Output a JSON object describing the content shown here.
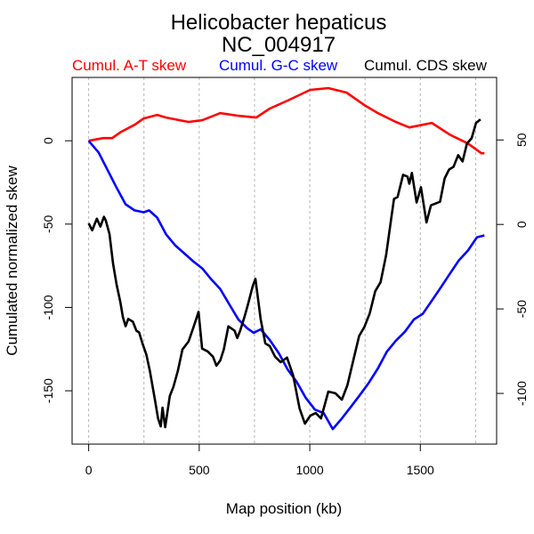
{
  "chart_data": {
    "type": "line",
    "title": "Helicobacter hepaticus",
    "subtitle": "NC_004917",
    "xlabel": "Map position (kb)",
    "ylabel": "Cumulated normalized skew",
    "xlim": [
      -75,
      1845
    ],
    "ylim_left": [
      -182,
      38
    ],
    "ylim_right": [
      -130,
      87
    ],
    "x_ticks": [
      0,
      500,
      1000,
      1500
    ],
    "x_tick_labels": [
      "0",
      "500",
      "1000",
      "1500"
    ],
    "y_left_ticks": [
      0,
      -50,
      -100,
      -150
    ],
    "y_left_tick_labels": [
      "0",
      "-50",
      "-100",
      "-150"
    ],
    "y_right_ticks": [
      50,
      0,
      -50,
      -100
    ],
    "y_right_tick_labels": [
      "50",
      "0",
      "-50",
      "-100"
    ],
    "grid_x": [
      0,
      250,
      500,
      750,
      1000,
      1250,
      1500,
      1750
    ],
    "legend_placement": "top",
    "series": [
      {
        "name": "Cumul. A-T skew",
        "color": "#ff0000",
        "axis": "left",
        "x": [
          0,
          65,
          106,
          147,
          208,
          249,
          310,
          351,
          412,
          452,
          514,
          595,
          677,
          758,
          819,
          900,
          1002,
          1084,
          1166,
          1247,
          1308,
          1389,
          1450,
          1511,
          1552,
          1633,
          1715,
          1776,
          1790
        ],
        "y": [
          0,
          1.6,
          1.6,
          5.4,
          9.6,
          13.4,
          15.5,
          13.9,
          12.3,
          11.3,
          12.3,
          16.6,
          15.0,
          13.9,
          19.3,
          24.1,
          30.5,
          31.6,
          28.9,
          21.4,
          16.6,
          11.3,
          8.0,
          9.6,
          10.7,
          3.7,
          -1.6,
          -7.5,
          -7.5
        ]
      },
      {
        "name": "Cumul. G-C skew",
        "color": "#0000ff",
        "axis": "left",
        "x": [
          0,
          45,
          86,
          127,
          167,
          208,
          249,
          273,
          310,
          351,
          391,
          432,
          473,
          514,
          554,
          595,
          636,
          677,
          717,
          746,
          778,
          819,
          860,
          900,
          941,
          982,
          1023,
          1063,
          1104,
          1145,
          1186,
          1226,
          1267,
          1308,
          1349,
          1389,
          1430,
          1471,
          1511,
          1552,
          1593,
          1633,
          1674,
          1715,
          1756,
          1790
        ],
        "y": [
          0,
          -7.0,
          -17.7,
          -28.4,
          -38.1,
          -41.8,
          -42.9,
          -41.8,
          -46.1,
          -56.3,
          -62.7,
          -67.5,
          -72.3,
          -76.6,
          -83.1,
          -89.0,
          -98.1,
          -107.2,
          -112.5,
          -115.2,
          -113.1,
          -119.5,
          -127.5,
          -137.2,
          -144.7,
          -154.3,
          -161.3,
          -163.4,
          -173.0,
          -166.6,
          -159.6,
          -152.7,
          -145.2,
          -136.6,
          -126.4,
          -120.0,
          -114.6,
          -107.2,
          -103.9,
          -95.9,
          -87.9,
          -79.9,
          -71.8,
          -65.9,
          -57.9,
          -56.8
        ]
      },
      {
        "name": "Cumul. CDS skew",
        "color": "#000000",
        "axis": "right",
        "x": [
          0,
          16,
          37,
          53,
          69,
          77,
          94,
          110,
          126,
          143,
          155,
          167,
          179,
          200,
          216,
          228,
          244,
          261,
          277,
          298,
          314,
          326,
          334,
          346,
          367,
          383,
          403,
          424,
          452,
          473,
          497,
          513,
          538,
          562,
          578,
          595,
          611,
          632,
          660,
          672,
          685,
          705,
          721,
          742,
          754,
          766,
          778,
          799,
          819,
          843,
          868,
          897,
          925,
          954,
          978,
          1002,
          1027,
          1051,
          1084,
          1116,
          1145,
          1170,
          1194,
          1223,
          1247,
          1271,
          1296,
          1320,
          1345,
          1369,
          1381,
          1397,
          1422,
          1442,
          1450,
          1462,
          1483,
          1503,
          1528,
          1548,
          1589,
          1610,
          1630,
          1650,
          1671,
          1691,
          1711,
          1732,
          1752,
          1772
        ],
        "y": [
          0.7,
          -3.5,
          3.4,
          -1.3,
          4.5,
          2.4,
          -5.6,
          -23.1,
          -35.3,
          -45.9,
          -54.9,
          -60.2,
          -55.9,
          -57.6,
          -62.9,
          -63.9,
          -70.8,
          -77.1,
          -86.7,
          -102.6,
          -114.8,
          -119.5,
          -108.4,
          -120.0,
          -101.5,
          -96.2,
          -86.7,
          -74.0,
          -69.2,
          -61.3,
          -51.7,
          -73.5,
          -75.1,
          -78.3,
          -83.6,
          -80.5,
          -74.1,
          -60.3,
          -62.9,
          -67.2,
          -62.9,
          -54.5,
          -47.0,
          -36.4,
          -32.2,
          -43.9,
          -56.1,
          -70.4,
          -72.0,
          -78.3,
          -81.5,
          -78.8,
          -89.4,
          -108.9,
          -117.9,
          -113.2,
          -111.6,
          -114.8,
          -98.9,
          -99.9,
          -103.7,
          -95.2,
          -81.9,
          -66.0,
          -60.7,
          -52.7,
          -39.5,
          -34.2,
          -18.3,
          4.0,
          15.1,
          16.2,
          29.4,
          28.3,
          24.1,
          30.5,
          13.0,
          22.0,
          1.2,
          11.3,
          13.4,
          27.2,
          32.5,
          34.1,
          41.0,
          37.3,
          47.9,
          51.0,
          60.1,
          62.2
        ]
      }
    ]
  }
}
